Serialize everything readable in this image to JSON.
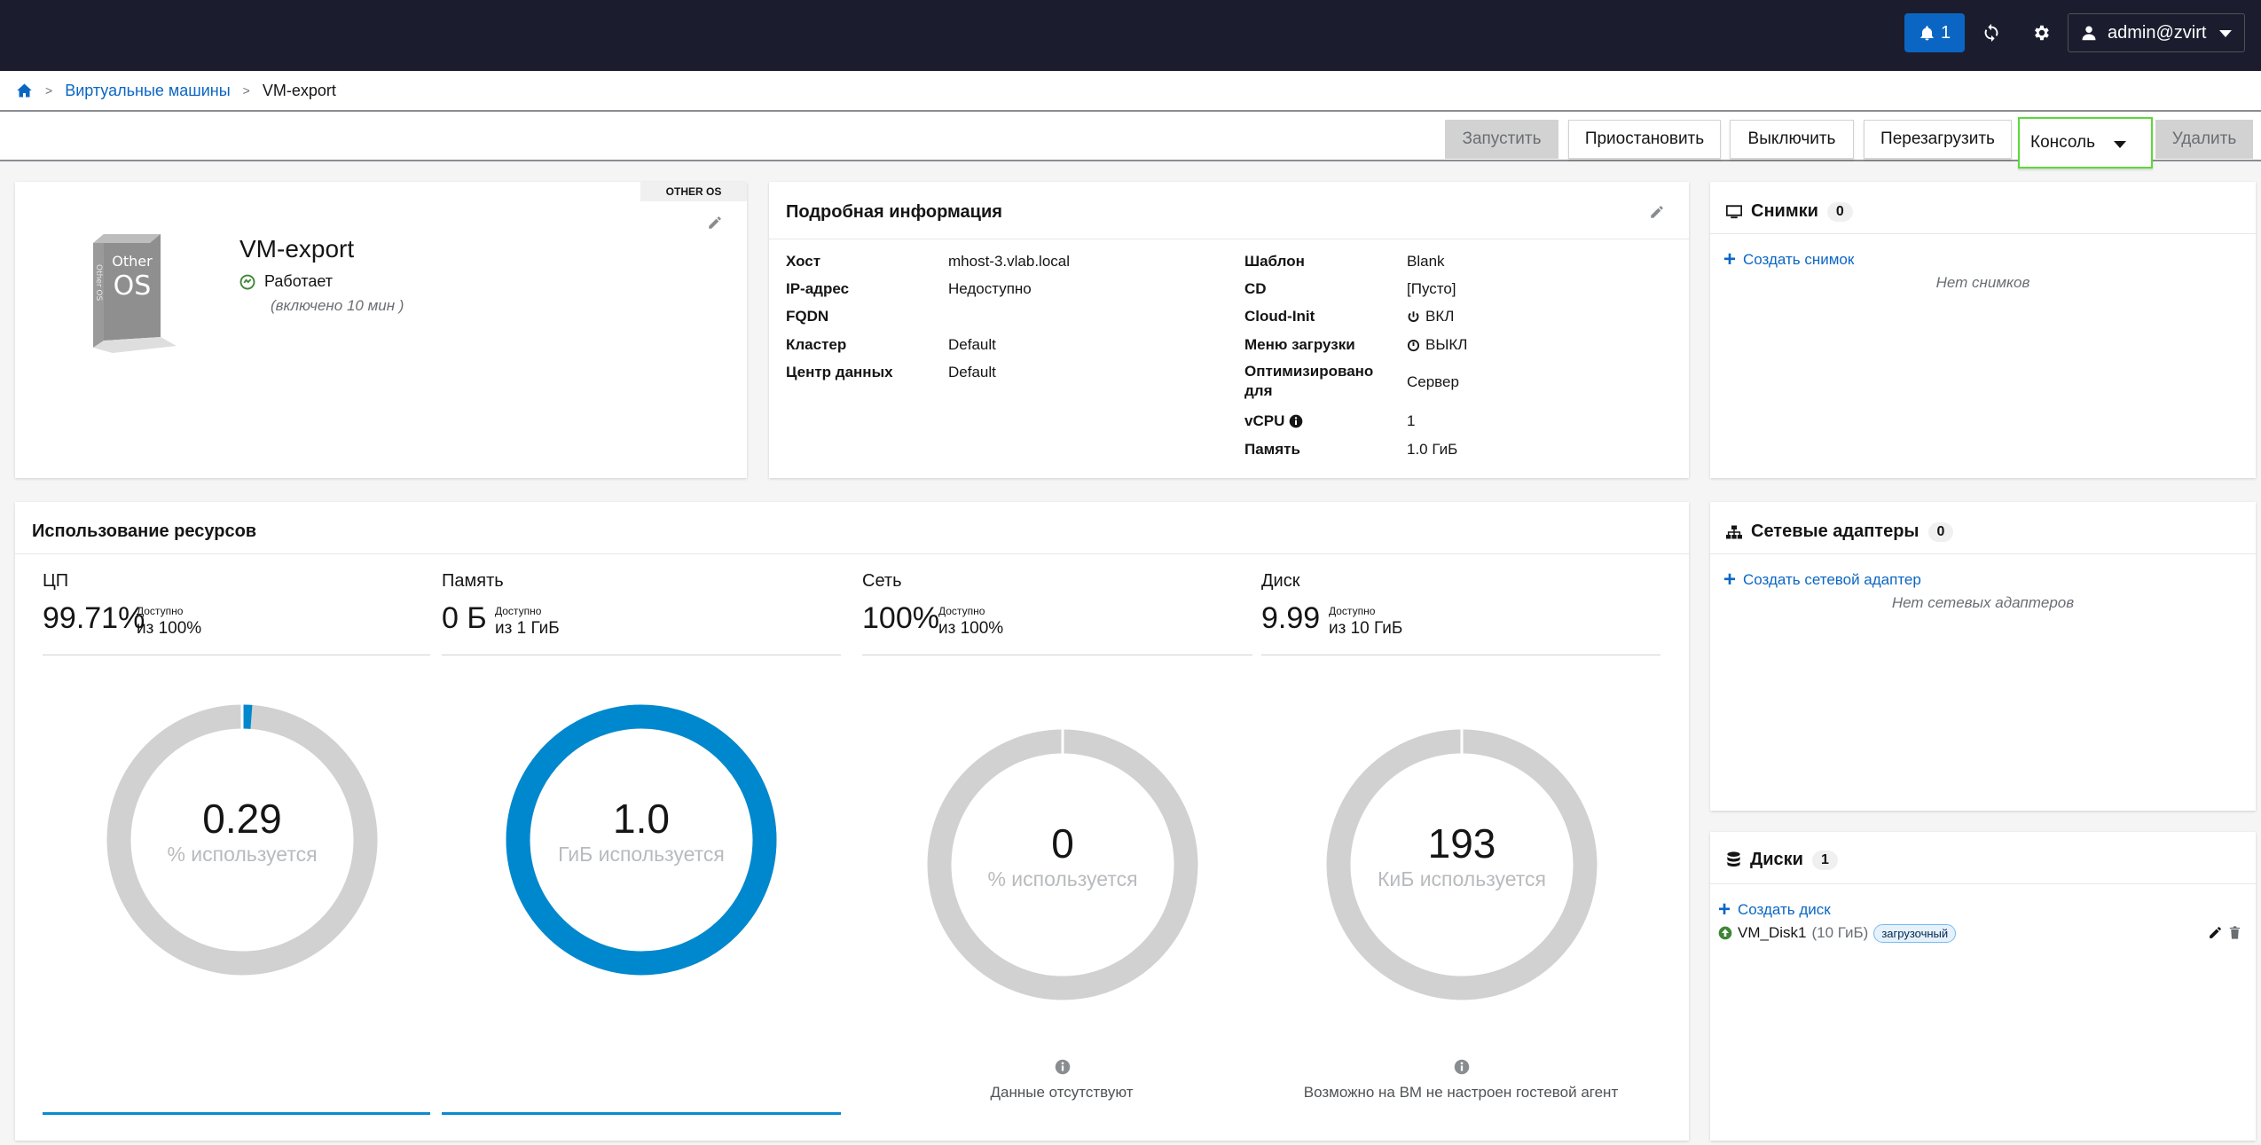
{
  "topbar": {
    "notifications_count": "1",
    "user_label": "admin@zvirt",
    "icons": [
      "bell-icon",
      "refresh-icon",
      "gear-icon",
      "user-icon",
      "chevron-down-icon"
    ]
  },
  "breadcrumb": {
    "section": "Виртуальные машины",
    "current": "VM-export"
  },
  "toolbar": {
    "start": "Запустить",
    "suspend": "Приостановить",
    "shutdown": "Выключить",
    "reboot": "Перезагрузить",
    "console": "Консоль",
    "remove": "Удалить"
  },
  "vm": {
    "os_tag": "OTHER OS",
    "name": "VM-export",
    "status": "Работает",
    "uptime": "(включено 10 мин )",
    "os_icon_top": "Other",
    "os_icon_main": "OS",
    "os_icon_side": "Other OS"
  },
  "details": {
    "title": "Подробная информация",
    "left": [
      {
        "k": "Хост",
        "v": "mhost-3.vlab.local"
      },
      {
        "k": "IP-адрес",
        "v": "Недоступно"
      },
      {
        "k": "FQDN",
        "v": ""
      },
      {
        "k": "Кластер",
        "v": "Default"
      },
      {
        "k": "Центр данных",
        "v": "Default"
      }
    ],
    "right": [
      {
        "k": "Шаблон",
        "v": "Blank"
      },
      {
        "k": "CD",
        "v": "[Пусто]"
      },
      {
        "k": "Cloud-Init",
        "v": "ВКЛ"
      },
      {
        "k": "Меню загрузки",
        "v": "ВЫКЛ"
      },
      {
        "k": "Оптимизировано для",
        "v": "Сервер"
      },
      {
        "k": "vCPU",
        "v": "1"
      },
      {
        "k": "Память",
        "v": "1.0 ГиБ"
      }
    ]
  },
  "snapshots": {
    "title": "Снимки",
    "count": "0",
    "add": "Создать снимок",
    "empty": "Нет снимков"
  },
  "nics": {
    "title": "Сетевые адаптеры",
    "count": "0",
    "add": "Создать сетевой адаптер",
    "empty": "Нет сетевых адаптеров"
  },
  "disks": {
    "title": "Диски",
    "count": "1",
    "add": "Создать диск",
    "items": [
      {
        "name": "VM_Disk1",
        "size": "(10 ГиБ)",
        "badge": "загрузочный"
      }
    ]
  },
  "resources": {
    "title": "Использование ресурсов",
    "available_label": "Доступно",
    "cpu": {
      "label": "ЦП",
      "big": "99.71%",
      "of": "из 100%",
      "donut_value": "0.29",
      "donut_unit": "% используется",
      "used_fraction": 0.0029
    },
    "memory": {
      "label": "Память",
      "big": "0 Б",
      "of": "из 1 ГиБ",
      "donut_value": "1.0",
      "donut_unit": "ГиБ используется",
      "used_fraction": 1.0
    },
    "network": {
      "label": "Сеть",
      "big": "100%",
      "of": "из 100%",
      "donut_value": "0",
      "donut_unit": "% используется",
      "used_fraction": 0,
      "note": "Данные отсутствуют"
    },
    "disk": {
      "label": "Диск",
      "big": "9.99",
      "of": "из 10 ГиБ",
      "donut_value": "193",
      "donut_unit": "КиБ используется",
      "used_fraction": 0,
      "note": "Возможно на ВМ не настроен гостевой агент"
    }
  },
  "colors": {
    "accent": "#0b66c3",
    "donut_used": "#0088ce",
    "donut_track": "#d1d1d1",
    "status_ok": "#3e8635",
    "console_highlight": "#5cd93a"
  }
}
